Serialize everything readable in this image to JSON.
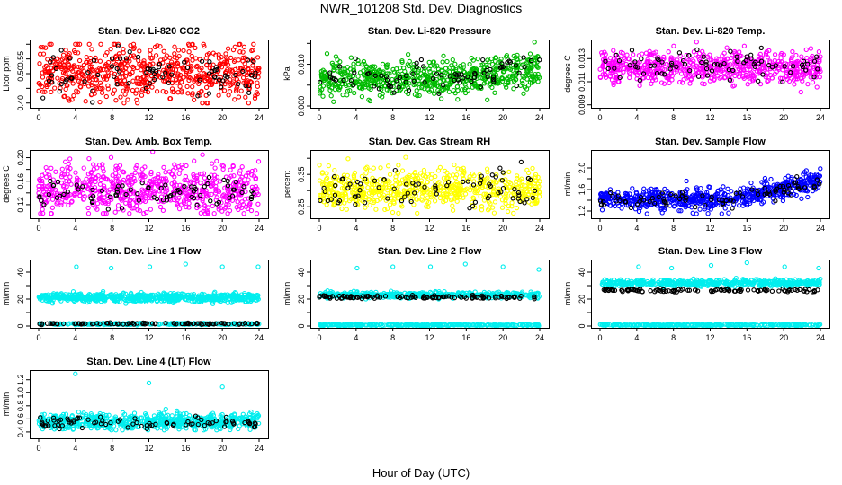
{
  "figure": {
    "title": "NWR_101208  Std. Dev. Diagnostics",
    "xlabel": "Hour of Day (UTC)"
  },
  "chart_data": [
    {
      "type": "scatter",
      "title": "Stan. Dev. Li-820 CO2",
      "ylabel": "Licor ppm",
      "xlim": [
        0,
        24
      ],
      "ylim": [
        0.39,
        0.61
      ],
      "xticks": [
        "0",
        "4",
        "8",
        "12",
        "16",
        "20",
        "24"
      ],
      "yticks": [
        {
          "v": 0.4,
          "t": "0.40"
        },
        {
          "v": 0.45,
          "t": ""
        },
        {
          "v": 0.5,
          "t": "0.50"
        },
        {
          "v": 0.55,
          "t": "0.55"
        },
        {
          "v": 0.6,
          "t": ""
        }
      ],
      "series": [
        {
          "name": "main",
          "color": "#ff0000",
          "n": 650,
          "center": 0.505,
          "spread": 0.045,
          "min": 0.4,
          "max": 0.6
        },
        {
          "name": "highlight",
          "color": "#000000",
          "n": 80,
          "center": 0.5,
          "spread": 0.045,
          "min": 0.4,
          "max": 0.61
        }
      ]
    },
    {
      "type": "scatter",
      "title": "Stan. Dev. Li-820 Pressure",
      "ylabel": "kPa",
      "xlim": [
        0,
        24
      ],
      "ylim": [
        0.0,
        0.0155
      ],
      "xticks": [
        "0",
        "4",
        "8",
        "12",
        "16",
        "20",
        "24"
      ],
      "yticks": [
        {
          "v": 0.0,
          "t": "0.000"
        },
        {
          "v": 0.005,
          "t": ""
        },
        {
          "v": 0.01,
          "t": "0.010"
        },
        {
          "v": 0.015,
          "t": ""
        }
      ],
      "series": [
        {
          "name": "main",
          "color": "#00bb00",
          "n": 650,
          "center": 0.0065,
          "spread": 0.0022,
          "trend": 0.0025,
          "min": 0.0,
          "max": 0.0155
        },
        {
          "name": "highlight",
          "color": "#000000",
          "n": 80,
          "center": 0.0065,
          "spread": 0.0018,
          "trend": 0.0025,
          "min": 0.001,
          "max": 0.012
        }
      ]
    },
    {
      "type": "scatter",
      "title": "Stan. Dev. Li-820 Temp.",
      "ylabel": "degrees C",
      "xlim": [
        0,
        24
      ],
      "ylim": [
        0.0089,
        0.0145
      ],
      "xticks": [
        "0",
        "4",
        "8",
        "12",
        "16",
        "20",
        "24"
      ],
      "yticks": [
        {
          "v": 0.009,
          "t": "0.009"
        },
        {
          "v": 0.011,
          "t": "0.011"
        },
        {
          "v": 0.013,
          "t": "0.013"
        }
      ],
      "series": [
        {
          "name": "main",
          "color": "#ff00ff",
          "n": 650,
          "center": 0.0122,
          "spread": 0.0007,
          "min": 0.0089,
          "max": 0.0145
        },
        {
          "name": "highlight",
          "color": "#000000",
          "n": 80,
          "center": 0.0124,
          "spread": 0.0006,
          "min": 0.0095,
          "max": 0.014
        }
      ]
    },
    {
      "type": "scatter",
      "title": "Stan. Dev. Amb. Box Temp.",
      "ylabel": "degrees C",
      "xlim": [
        0,
        24
      ],
      "ylim": [
        0.1,
        0.21
      ],
      "xticks": [
        "0",
        "4",
        "8",
        "12",
        "16",
        "20",
        "24"
      ],
      "yticks": [
        {
          "v": 0.12,
          "t": "0.12"
        },
        {
          "v": 0.14,
          "t": ""
        },
        {
          "v": 0.16,
          "t": "0.16"
        },
        {
          "v": 0.18,
          "t": ""
        },
        {
          "v": 0.2,
          "t": "0.20"
        }
      ],
      "series": [
        {
          "name": "main",
          "color": "#ff00ff",
          "n": 650,
          "center": 0.145,
          "spread": 0.022,
          "min": 0.105,
          "max": 0.21
        },
        {
          "name": "highlight",
          "color": "#000000",
          "n": 80,
          "center": 0.14,
          "spread": 0.012,
          "min": 0.105,
          "max": 0.18
        }
      ]
    },
    {
      "type": "scatter",
      "title": "Stan. Dev. Gas Stream RH",
      "ylabel": "percent",
      "xlim": [
        0,
        24
      ],
      "ylim": [
        0.22,
        0.42
      ],
      "xticks": [
        "0",
        "4",
        "8",
        "12",
        "16",
        "20",
        "24"
      ],
      "yticks": [
        {
          "v": 0.25,
          "t": "0.25"
        },
        {
          "v": 0.3,
          "t": ""
        },
        {
          "v": 0.35,
          "t": "0.35"
        },
        {
          "v": 0.4,
          "t": ""
        }
      ],
      "series": [
        {
          "name": "main",
          "color": "#ffff00",
          "n": 650,
          "center": 0.305,
          "spread": 0.03,
          "min": 0.23,
          "max": 0.41
        },
        {
          "name": "highlight",
          "color": "#000000",
          "n": 80,
          "center": 0.3,
          "spread": 0.03,
          "min": 0.24,
          "max": 0.4
        }
      ]
    },
    {
      "type": "scatter",
      "title": "Stan. Dev. Sample Flow",
      "ylabel": "ml/min",
      "xlim": [
        0,
        24
      ],
      "ylim": [
        1.1,
        2.3
      ],
      "xticks": [
        "0",
        "4",
        "8",
        "12",
        "16",
        "20",
        "24"
      ],
      "yticks": [
        {
          "v": 1.2,
          "t": "1.2"
        },
        {
          "v": 1.4,
          "t": ""
        },
        {
          "v": 1.6,
          "t": "1.6"
        },
        {
          "v": 1.8,
          "t": ""
        },
        {
          "v": 2.0,
          "t": "2.0"
        }
      ],
      "series": [
        {
          "name": "main",
          "color": "#0000ff",
          "n": 650,
          "center": 1.42,
          "spread": 0.1,
          "trend": 0.35,
          "min": 1.15,
          "max": 2.25
        },
        {
          "name": "highlight",
          "color": "#000000",
          "n": 80,
          "center": 1.42,
          "spread": 0.08,
          "trend": 0.3,
          "min": 1.2,
          "max": 2.0
        }
      ]
    },
    {
      "type": "scatter",
      "title": "Stan. Dev. Line 1 Flow",
      "ylabel": "ml/min",
      "xlim": [
        0,
        24
      ],
      "ylim": [
        0,
        48
      ],
      "xticks": [
        "0",
        "4",
        "8",
        "12",
        "16",
        "20",
        "24"
      ],
      "yticks": [
        {
          "v": 0,
          "t": "0"
        },
        {
          "v": 10,
          "t": ""
        },
        {
          "v": 20,
          "t": "20"
        },
        {
          "v": 30,
          "t": ""
        },
        {
          "v": 40,
          "t": "40"
        }
      ],
      "series": [
        {
          "name": "main",
          "color": "#00eeee",
          "n": 650,
          "center": 21,
          "spread": 1.6,
          "min": 15,
          "max": 28
        },
        {
          "name": "low",
          "color": "#00eeee",
          "n": 250,
          "center": 1.6,
          "spread": 0.3,
          "min": 0.5,
          "max": 3
        },
        {
          "name": "highlight",
          "color": "#000000",
          "n": 90,
          "center": 1.8,
          "spread": 0.3,
          "min": 0.8,
          "max": 3.5
        },
        {
          "name": "spikes",
          "color": "#00eeee",
          "x": [
            4.1,
            7.9,
            12.1,
            16.0,
            20.0,
            23.9
          ],
          "y": [
            44,
            43,
            44,
            46,
            44,
            44
          ]
        }
      ]
    },
    {
      "type": "scatter",
      "title": "Stan. Dev. Line 2 Flow",
      "ylabel": "ml/min",
      "xlim": [
        0,
        24
      ],
      "ylim": [
        0,
        48
      ],
      "xticks": [
        "0",
        "4",
        "8",
        "12",
        "16",
        "20",
        "24"
      ],
      "yticks": [
        {
          "v": 0,
          "t": "0"
        },
        {
          "v": 10,
          "t": ""
        },
        {
          "v": 20,
          "t": "20"
        },
        {
          "v": 30,
          "t": ""
        },
        {
          "v": 40,
          "t": "40"
        }
      ],
      "series": [
        {
          "name": "main",
          "color": "#00eeee",
          "n": 500,
          "center": 23,
          "spread": 1.0,
          "min": 20,
          "max": 27
        },
        {
          "name": "low",
          "color": "#00eeee",
          "n": 300,
          "center": 0.8,
          "spread": 0.3,
          "min": 0.2,
          "max": 1.8
        },
        {
          "name": "highlight",
          "color": "#000000",
          "n": 110,
          "center": 21.5,
          "spread": 0.6,
          "min": 20,
          "max": 23
        },
        {
          "name": "spikes",
          "color": "#00eeee",
          "x": [
            4.1,
            8.0,
            12.1,
            15.9,
            20.0,
            23.9
          ],
          "y": [
            43,
            44,
            44,
            46,
            44,
            42
          ]
        }
      ]
    },
    {
      "type": "scatter",
      "title": "Stan. Dev. Line 3 Flow",
      "ylabel": "ml/min",
      "xlim": [
        0,
        24
      ],
      "ylim": [
        0,
        48
      ],
      "xticks": [
        "0",
        "4",
        "8",
        "12",
        "16",
        "20",
        "24"
      ],
      "yticks": [
        {
          "v": 0,
          "t": "0"
        },
        {
          "v": 10,
          "t": ""
        },
        {
          "v": 20,
          "t": "20"
        },
        {
          "v": 30,
          "t": ""
        },
        {
          "v": 40,
          "t": "40"
        }
      ],
      "series": [
        {
          "name": "main",
          "color": "#00eeee",
          "n": 500,
          "center": 32,
          "spread": 1.2,
          "min": 29,
          "max": 36
        },
        {
          "name": "low",
          "color": "#00eeee",
          "n": 300,
          "center": 0.8,
          "spread": 0.3,
          "min": 0.2,
          "max": 1.8
        },
        {
          "name": "highlight",
          "color": "#000000",
          "n": 110,
          "center": 26.5,
          "spread": 0.6,
          "min": 25,
          "max": 28
        },
        {
          "name": "spikes",
          "color": "#00eeee",
          "x": [
            4.2,
            7.8,
            12.1,
            16.0,
            20.1,
            23.8
          ],
          "y": [
            44,
            43,
            45,
            47,
            44,
            43
          ]
        }
      ]
    },
    {
      "type": "scatter",
      "title": "Stan. Dev. Line 4 (LT) Flow",
      "ylabel": "ml/min",
      "xlim": [
        0,
        24
      ],
      "ylim": [
        0.33,
        1.32
      ],
      "xticks": [
        "0",
        "4",
        "8",
        "12",
        "16",
        "20",
        "24"
      ],
      "yticks": [
        {
          "v": 0.4,
          "t": "0.4"
        },
        {
          "v": 0.6,
          "t": "0.6"
        },
        {
          "v": 0.8,
          "t": "0.8"
        },
        {
          "v": 1.0,
          "t": "1.0"
        },
        {
          "v": 1.2,
          "t": "1.2"
        }
      ],
      "series": [
        {
          "name": "main",
          "color": "#00eeee",
          "n": 650,
          "center": 0.56,
          "spread": 0.06,
          "min": 0.43,
          "max": 0.76
        },
        {
          "name": "highlight",
          "color": "#000000",
          "n": 80,
          "center": 0.54,
          "spread": 0.05,
          "min": 0.42,
          "max": 0.68
        },
        {
          "name": "spikes",
          "color": "#00eeee",
          "x": [
            4.0,
            12.0,
            20.0
          ],
          "y": [
            1.29,
            1.15,
            1.09
          ]
        }
      ]
    }
  ]
}
